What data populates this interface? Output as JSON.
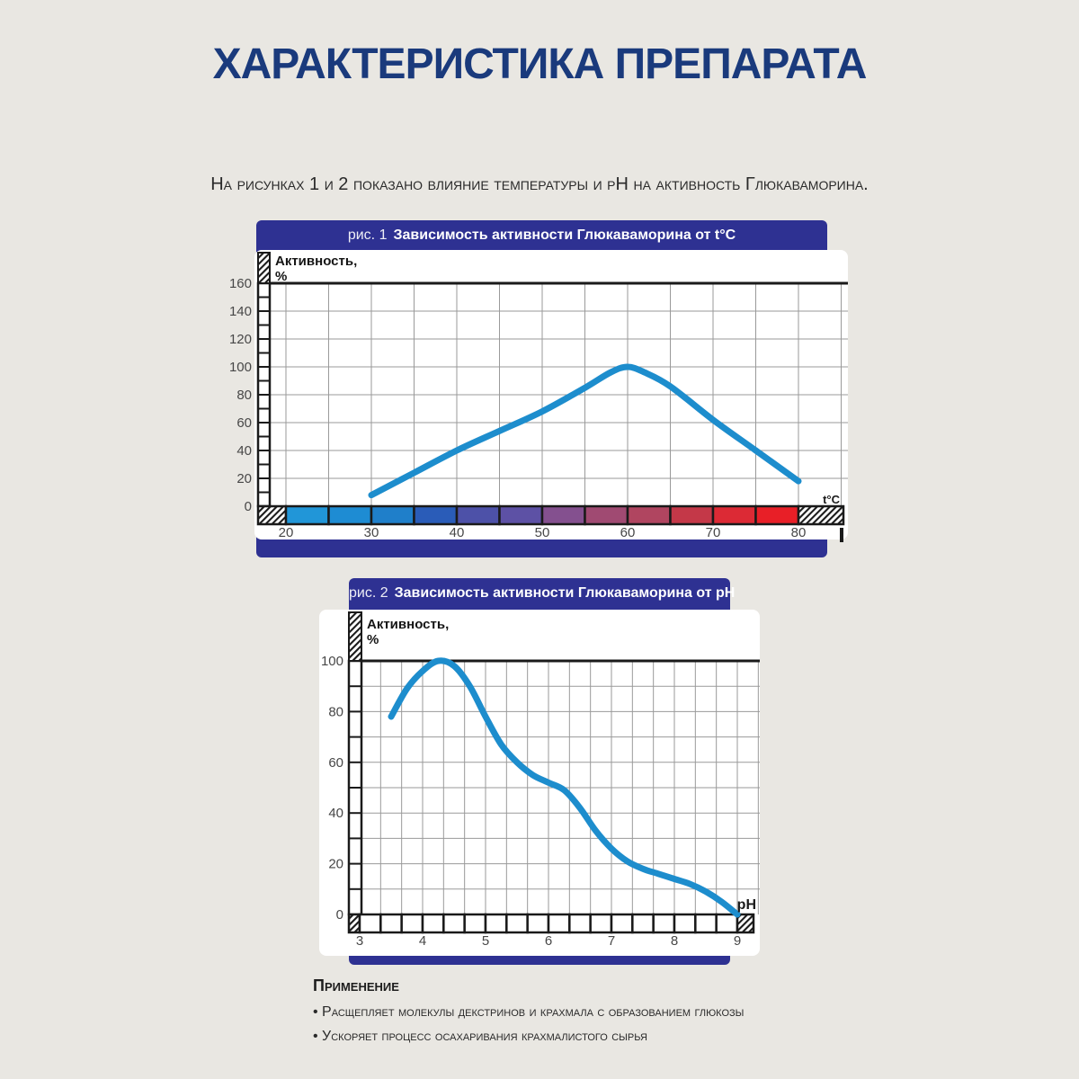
{
  "page": {
    "title": "ХАРАКТЕРИСТИКА ПРЕПАРАТА",
    "intro": "На рисунках 1 и 2 показано влияние температуры и pH на активность Глюкаваморина.",
    "background_color": "#e9e7e2",
    "title_color": "#1a3a7c",
    "banner_color": "#2e3192"
  },
  "chart_data": [
    {
      "type": "line",
      "fig_label": "рис. 1",
      "title": "Зависимость активности Глюкаваморина от t°C",
      "ylabel_line1": "Активность,",
      "ylabel_line2": "%",
      "xlabel": "t°C",
      "x": [
        30,
        35,
        40,
        45,
        50,
        55,
        58,
        60,
        62,
        65,
        70,
        75,
        80
      ],
      "values": [
        8,
        24,
        40,
        54,
        68,
        85,
        96,
        100,
        96,
        86,
        62,
        40,
        18
      ],
      "x_ticks": [
        20,
        30,
        40,
        50,
        60,
        70,
        80
      ],
      "y_tick_labels": [
        0,
        20,
        40,
        60,
        80,
        100,
        120,
        140,
        160
      ],
      "xlim": [
        20,
        85
      ],
      "ylim": [
        0,
        160
      ],
      "grid": "on",
      "curve_color": "#1d8dcd",
      "temperature_scale_colors": [
        "#2196d8",
        "#1e8cd3",
        "#1f7fca",
        "#2a5cb8",
        "#4d51a8",
        "#5d51a5",
        "#84508f",
        "#a04a72",
        "#b04560",
        "#c43848",
        "#dc2a35",
        "#e81f27"
      ]
    },
    {
      "type": "line",
      "fig_label": "рис. 2",
      "title": "Зависимость активности Глюкаваморина от pH",
      "ylabel_line1": "Активность,",
      "ylabel_line2": "%",
      "xlabel": "pH",
      "x": [
        3.5,
        3.75,
        4,
        4.25,
        4.5,
        4.75,
        5,
        5.25,
        5.5,
        5.75,
        6,
        6.25,
        6.5,
        6.75,
        7,
        7.25,
        7.5,
        7.75,
        8,
        8.25,
        8.5,
        8.75,
        9
      ],
      "values": [
        78,
        89,
        96,
        100,
        98,
        90,
        78,
        67,
        60,
        55,
        52,
        49,
        42,
        33,
        26,
        21,
        18,
        16,
        14,
        12,
        9,
        5,
        0
      ],
      "x_ticks": [
        3,
        4,
        5,
        6,
        7,
        8,
        9
      ],
      "y_tick_labels": [
        0,
        20,
        40,
        60,
        80,
        100
      ],
      "xlim": [
        3,
        9.33
      ],
      "ylim": [
        0,
        100
      ],
      "grid": "on",
      "curve_color": "#1d8dcd"
    }
  ],
  "application": {
    "heading": "Применение",
    "bullets": [
      "Расщепляет молекулы декстринов и крахмала с образованием глюкозы",
      "Ускоряет процесс осахаривания крахмалистого сырья"
    ]
  }
}
